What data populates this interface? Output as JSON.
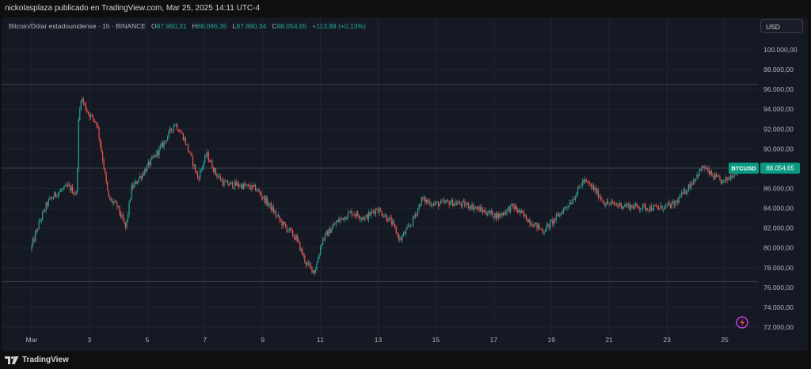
{
  "header": {
    "publisher": "nickolasplaza publicado en TradingView.com, Mar 25, 2025 14:11 UTC-4"
  },
  "legend": {
    "symbol": "Bitcoin/Dólar estadounidense · 1h · BINANCE",
    "open_label": "O",
    "open": "87.960,31",
    "high_label": "H",
    "high": "88.086,35",
    "low_label": "L",
    "low": "87.880,34",
    "close_label": "C",
    "close": "88.054,65",
    "change": "+113,88 (+0,13%)"
  },
  "currency_button": "USD",
  "price_tag": {
    "symbol": "BTCUSD",
    "value": "88.054,65"
  },
  "footer": {
    "brand": "TradingView"
  },
  "colors": {
    "up": "#26a69a",
    "down": "#ef5350",
    "background": "#151924",
    "price_tag": "#089981"
  },
  "chart_data": {
    "type": "candlestick",
    "y_axis_labels": [
      "100.000,00",
      "98.000,00",
      "96.000,00",
      "94.000,00",
      "92.000,00",
      "90.000,00",
      "88.000,00",
      "86.000,00",
      "84.000,00",
      "82.000,00",
      "80.000,00",
      "78.000,00",
      "76.000,00",
      "74.000,00",
      "72.000,00"
    ],
    "y_axis_values": [
      100000,
      98000,
      96000,
      94000,
      92000,
      90000,
      88000,
      86000,
      84000,
      82000,
      80000,
      78000,
      76000,
      74000,
      72000
    ],
    "x_axis_labels": [
      "Mar",
      "3",
      "5",
      "7",
      "9",
      "11",
      "13",
      "15",
      "17",
      "19",
      "21",
      "23",
      "25"
    ],
    "x_axis_days": [
      1,
      3,
      5,
      7,
      9,
      11,
      13,
      15,
      17,
      19,
      21,
      23,
      25
    ],
    "horizontal_levels": [
      96500,
      88050,
      76600
    ],
    "last_price": 88054.65,
    "price_path_hourly_anchors": [
      [
        1.0,
        79800
      ],
      [
        1.3,
        82500
      ],
      [
        1.6,
        84600
      ],
      [
        1.9,
        85500
      ],
      [
        2.3,
        86200
      ],
      [
        2.6,
        85400
      ],
      [
        2.66,
        92500
      ],
      [
        2.75,
        95200
      ],
      [
        3.0,
        93600
      ],
      [
        3.3,
        92600
      ],
      [
        3.5,
        89000
      ],
      [
        3.7,
        85000
      ],
      [
        4.0,
        84200
      ],
      [
        4.3,
        82000
      ],
      [
        4.5,
        86000
      ],
      [
        5.0,
        88000
      ],
      [
        5.6,
        90500
      ],
      [
        6.0,
        92600
      ],
      [
        6.3,
        91200
      ],
      [
        6.6,
        88800
      ],
      [
        6.8,
        87000
      ],
      [
        7.1,
        89500
      ],
      [
        7.4,
        87600
      ],
      [
        7.7,
        86500
      ],
      [
        8.3,
        86300
      ],
      [
        8.8,
        86000
      ],
      [
        9.3,
        84200
      ],
      [
        9.7,
        82500
      ],
      [
        10.2,
        81000
      ],
      [
        10.55,
        78400
      ],
      [
        10.85,
        77600
      ],
      [
        11.1,
        80800
      ],
      [
        11.6,
        82600
      ],
      [
        12.1,
        83600
      ],
      [
        12.6,
        83000
      ],
      [
        13.0,
        84000
      ],
      [
        13.5,
        82600
      ],
      [
        13.8,
        80800
      ],
      [
        14.2,
        82500
      ],
      [
        14.55,
        84900
      ],
      [
        15.0,
        84400
      ],
      [
        15.5,
        84600
      ],
      [
        16.2,
        84300
      ],
      [
        16.7,
        83700
      ],
      [
        17.2,
        83200
      ],
      [
        17.7,
        84200
      ],
      [
        18.3,
        82700
      ],
      [
        18.75,
        81700
      ],
      [
        19.2,
        83000
      ],
      [
        19.8,
        85000
      ],
      [
        20.15,
        86800
      ],
      [
        20.5,
        86000
      ],
      [
        20.9,
        84500
      ],
      [
        21.5,
        84300
      ],
      [
        22.2,
        84100
      ],
      [
        22.8,
        84000
      ],
      [
        23.3,
        84400
      ],
      [
        23.8,
        86200
      ],
      [
        24.3,
        88200
      ],
      [
        24.6,
        87300
      ],
      [
        25.0,
        86600
      ],
      [
        25.4,
        87700
      ],
      [
        25.6,
        88054.65
      ]
    ]
  }
}
